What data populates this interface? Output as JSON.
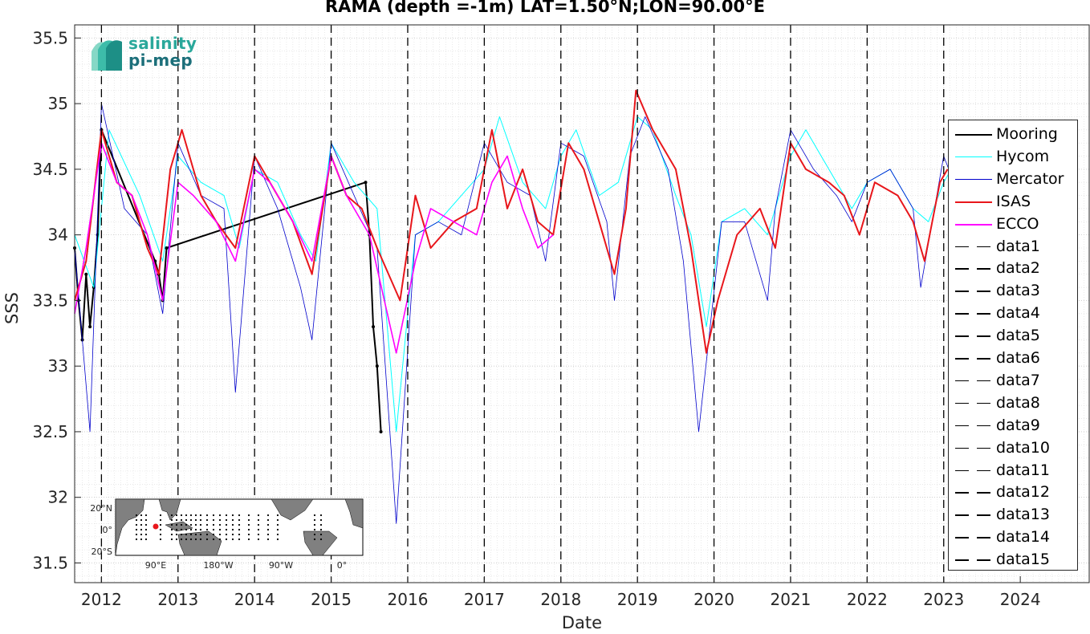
{
  "chart_data": {
    "type": "line",
    "title": "RAMA (depth =-1m) LAT=1.50°N;LON=90.00°E",
    "xlabel": "Date",
    "ylabel": "SSS",
    "xlim": [
      2011.65,
      2024.9
    ],
    "ylim": [
      31.35,
      35.6
    ],
    "x_ticks": [
      "2012",
      "2013",
      "2014",
      "2015",
      "2016",
      "2017",
      "2018",
      "2019",
      "2020",
      "2021",
      "2022",
      "2023",
      "2024"
    ],
    "y_ticks": [
      "31.5",
      "32",
      "32.5",
      "33",
      "33.5",
      "34",
      "34.5",
      "35",
      "35.5"
    ],
    "grid": true,
    "legend_position": "right",
    "year_markers": [
      2012,
      2013,
      2014,
      2015,
      2016,
      2017,
      2018,
      2019,
      2020,
      2021,
      2022,
      2023
    ],
    "series": [
      {
        "name": "Mooring",
        "color": "#000000",
        "style": "solid-markers",
        "x": [
          2011.65,
          2011.7,
          2011.75,
          2011.8,
          2011.85,
          2011.9,
          2011.95,
          2012.0,
          2012.7,
          2012.75,
          2012.8,
          2012.85,
          2015.45,
          2015.5,
          2015.55,
          2015.6,
          2015.65
        ],
        "y": [
          33.9,
          33.5,
          33.2,
          33.7,
          33.3,
          33.6,
          34.0,
          34.8,
          33.8,
          33.7,
          33.5,
          33.9,
          34.4,
          34.0,
          33.3,
          33.0,
          32.5
        ]
      },
      {
        "name": "Hycom",
        "color": "#00ffff",
        "style": "solid",
        "x": [
          2011.65,
          2011.9,
          2012.1,
          2012.5,
          2012.8,
          2013.0,
          2013.3,
          2013.6,
          2013.8,
          2014.0,
          2014.3,
          2014.6,
          2014.8,
          2015.0,
          2015.3,
          2015.6,
          2015.85,
          2016.1,
          2016.4,
          2016.7,
          2017.0,
          2017.2,
          2017.5,
          2017.8,
          2018.0,
          2018.2,
          2018.5,
          2018.75,
          2019.0,
          2019.2,
          2019.5,
          2019.7,
          2019.9,
          2020.1,
          2020.4,
          2020.7,
          2021.0,
          2021.2,
          2021.5,
          2021.8,
          2022.0,
          2022.3,
          2022.6,
          2022.8,
          2023.0,
          2023.2
        ],
        "y": [
          34.0,
          33.6,
          34.8,
          34.3,
          33.8,
          34.6,
          34.4,
          34.3,
          33.9,
          34.5,
          34.4,
          34.0,
          33.8,
          34.7,
          34.4,
          34.2,
          32.5,
          34.0,
          34.1,
          34.3,
          34.5,
          34.9,
          34.4,
          34.2,
          34.6,
          34.8,
          34.3,
          34.4,
          34.9,
          34.8,
          34.3,
          34.0,
          33.3,
          34.1,
          34.2,
          34.0,
          34.6,
          34.8,
          34.5,
          34.2,
          34.4,
          34.5,
          34.2,
          34.1,
          34.4,
          34.6
        ]
      },
      {
        "name": "Mercator",
        "color": "#0000cc",
        "style": "solid",
        "x": [
          2011.65,
          2011.85,
          2012.0,
          2012.3,
          2012.6,
          2012.8,
          2013.0,
          2013.3,
          2013.6,
          2013.75,
          2014.0,
          2014.3,
          2014.6,
          2014.75,
          2015.0,
          2015.3,
          2015.6,
          2015.85,
          2016.1,
          2016.4,
          2016.7,
          2017.0,
          2017.3,
          2017.6,
          2017.8,
          2018.0,
          2018.3,
          2018.6,
          2018.7,
          2018.9,
          2019.1,
          2019.4,
          2019.6,
          2019.8,
          2019.95,
          2020.1,
          2020.4,
          2020.7,
          2020.8,
          2021.0,
          2021.3,
          2021.6,
          2021.8,
          2022.0,
          2022.3,
          2022.6,
          2022.7,
          2023.0,
          2023.2
        ],
        "y": [
          33.9,
          32.5,
          35.0,
          34.2,
          34.0,
          33.4,
          34.7,
          34.3,
          34.2,
          32.8,
          34.6,
          34.2,
          33.6,
          33.2,
          34.7,
          34.3,
          33.9,
          31.8,
          34.0,
          34.1,
          34.0,
          34.7,
          34.4,
          34.3,
          33.8,
          34.7,
          34.6,
          34.1,
          33.5,
          34.6,
          34.9,
          34.5,
          33.8,
          32.5,
          33.3,
          34.1,
          34.1,
          33.5,
          34.2,
          34.8,
          34.5,
          34.3,
          34.1,
          34.4,
          34.5,
          34.2,
          33.6,
          34.6,
          34.3
        ]
      },
      {
        "name": "ISAS",
        "color": "#e8161b",
        "style": "solid",
        "x": [
          2011.65,
          2011.8,
          2012.0,
          2012.2,
          2012.4,
          2012.6,
          2012.75,
          2012.9,
          2013.05,
          2013.3,
          2013.5,
          2013.75,
          2014.0,
          2014.2,
          2014.5,
          2014.75,
          2015.0,
          2015.2,
          2015.4,
          2015.6,
          2015.9,
          2016.1,
          2016.3,
          2016.6,
          2016.9,
          2017.1,
          2017.3,
          2017.5,
          2017.7,
          2017.9,
          2018.1,
          2018.3,
          2018.5,
          2018.7,
          2018.85,
          2018.98,
          2019.2,
          2019.5,
          2019.7,
          2019.9,
          2020.05,
          2020.3,
          2020.6,
          2020.8,
          2021.0,
          2021.2,
          2021.5,
          2021.7,
          2021.9,
          2022.1,
          2022.4,
          2022.6,
          2022.75,
          2022.95,
          2023.05
        ],
        "y": [
          33.5,
          33.8,
          34.8,
          34.4,
          34.3,
          33.9,
          33.7,
          34.5,
          34.8,
          34.3,
          34.1,
          33.9,
          34.6,
          34.4,
          34.1,
          33.7,
          34.6,
          34.3,
          34.2,
          33.9,
          33.5,
          34.3,
          33.9,
          34.1,
          34.2,
          34.8,
          34.2,
          34.5,
          34.1,
          34.0,
          34.7,
          34.5,
          34.1,
          33.7,
          34.2,
          35.1,
          34.8,
          34.5,
          33.9,
          33.1,
          33.5,
          34.0,
          34.2,
          33.9,
          34.7,
          34.5,
          34.4,
          34.3,
          34.0,
          34.4,
          34.3,
          34.1,
          33.8,
          34.4,
          34.5
        ]
      },
      {
        "name": "ECCO",
        "color": "#ff00ff",
        "style": "solid",
        "x": [
          2011.65,
          2011.8,
          2012.0,
          2012.2,
          2012.4,
          2012.6,
          2012.8,
          2013.0,
          2013.2,
          2013.5,
          2013.75,
          2014.0,
          2014.2,
          2014.5,
          2014.75,
          2015.0,
          2015.2,
          2015.5,
          2015.85,
          2016.1,
          2016.3,
          2016.6,
          2016.9,
          2017.1,
          2017.3,
          2017.5,
          2017.7,
          2017.9
        ],
        "y": [
          33.4,
          33.9,
          34.7,
          34.4,
          34.3,
          34.0,
          33.5,
          34.4,
          34.3,
          34.1,
          33.8,
          34.5,
          34.4,
          34.1,
          33.8,
          34.6,
          34.3,
          34.0,
          33.1,
          33.8,
          34.2,
          34.1,
          34.0,
          34.4,
          34.6,
          34.2,
          33.9,
          34.0
        ]
      },
      {
        "name": "data1",
        "color": "#000000",
        "style": "dashed"
      },
      {
        "name": "data2",
        "color": "#000000",
        "style": "dashed"
      },
      {
        "name": "data3",
        "color": "#000000",
        "style": "dashed"
      },
      {
        "name": "data4",
        "color": "#000000",
        "style": "dashed"
      },
      {
        "name": "data5",
        "color": "#000000",
        "style": "dashed"
      },
      {
        "name": "data6",
        "color": "#000000",
        "style": "dashed"
      },
      {
        "name": "data7",
        "color": "#000000",
        "style": "dashed"
      },
      {
        "name": "data8",
        "color": "#000000",
        "style": "dashed"
      },
      {
        "name": "data9",
        "color": "#000000",
        "style": "dashed"
      },
      {
        "name": "data10",
        "color": "#000000",
        "style": "dashed"
      },
      {
        "name": "data11",
        "color": "#000000",
        "style": "dashed"
      },
      {
        "name": "data12",
        "color": "#000000",
        "style": "dashed"
      },
      {
        "name": "data13",
        "color": "#000000",
        "style": "dashed"
      },
      {
        "name": "data14",
        "color": "#000000",
        "style": "dashed"
      },
      {
        "name": "data15",
        "color": "#000000",
        "style": "dashed"
      }
    ]
  },
  "logo": {
    "line1": "salinity",
    "line2": "pi-mep",
    "color_primary": "#2aa89b",
    "color_secondary": "#1c6f7a"
  },
  "inset_map": {
    "lat_labels": [
      "20°N",
      "0°",
      "20°S"
    ],
    "lon_labels": [
      "90°E",
      "180°W",
      "90°W",
      "0°"
    ],
    "land_color": "#808080",
    "ocean_color": "#ffffff",
    "marker_color": "#e8161b"
  }
}
